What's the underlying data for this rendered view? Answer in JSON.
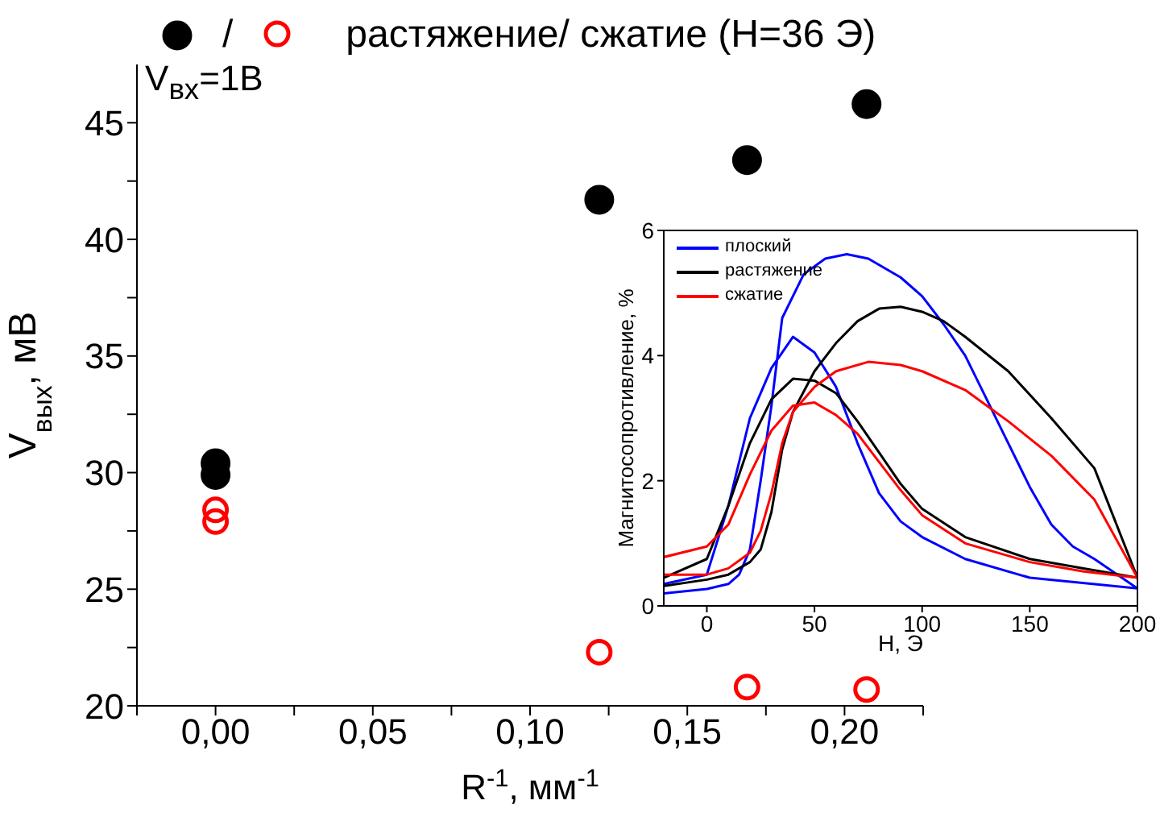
{
  "chart_data": [
    {
      "type": "scatter",
      "xlabel": "R$^{-1}$, мм$^{-1}$",
      "ylabel": "V$_{вых}$, мВ",
      "legend_title": "растяжение/ сжатие (H=36 Э)",
      "annotations": [
        "/",
        "V$_{вх}$=1В"
      ],
      "legend": "top",
      "marker": "circle",
      "xlim": [
        -0.025,
        0.225
      ],
      "ylim": [
        20,
        47.5
      ],
      "xticks": [
        {
          "value": -0.025,
          "label": null
        },
        {
          "value": 0,
          "label": "0,00"
        },
        {
          "value": 0.025,
          "label": null
        },
        {
          "value": 0.05,
          "label": "0,05"
        },
        {
          "value": 0.075,
          "label": null
        },
        {
          "value": 0.1,
          "label": "0,10"
        },
        {
          "value": 0.125,
          "label": null
        },
        {
          "value": 0.15,
          "label": "0,15"
        },
        {
          "value": 0.175,
          "label": null
        },
        {
          "value": 0.2,
          "label": "0,20"
        },
        {
          "value": 0.225,
          "label": null
        }
      ],
      "yticks": [
        20,
        {
          "value": 22.5,
          "label": null
        },
        25,
        {
          "value": 27.5,
          "label": null
        },
        30,
        {
          "value": 32.5,
          "label": null
        },
        35,
        {
          "value": 37.5,
          "label": null
        },
        40,
        {
          "value": 42.5,
          "label": null
        },
        45
      ],
      "series": [
        {
          "color": "#000000",
          "x": [
            0,
            0,
            0.122,
            0.169,
            0.207
          ],
          "values": [
            30.4,
            29.9,
            41.7,
            43.4,
            45.8
          ]
        },
        {
          "color": "#ff0000",
          "x": [
            0,
            0,
            0.122,
            0.169,
            0.207
          ],
          "values": [
            28.4,
            27.9,
            22.3,
            20.8,
            20.7
          ]
        }
      ]
    },
    {
      "type": "line",
      "xlabel": "H, Э",
      "ylabel": "Магнитосопротивление, %",
      "legend": "top left",
      "xlim": [
        -20,
        200
      ],
      "ylim": [
        0,
        6
      ],
      "xticks": [
        0,
        50,
        100,
        150,
        200
      ],
      "yticks": [
        0,
        2,
        4,
        6
      ],
      "series": [
        {
          "name": "плоский",
          "color": "#0000ff",
          "x": [
            -20,
            0,
            10,
            20,
            30,
            40,
            50,
            60,
            70,
            80,
            90,
            100,
            120,
            150,
            200,
            180,
            170,
            160,
            150,
            140,
            130,
            120,
            110,
            100,
            90,
            75,
            65,
            55,
            45,
            35,
            30,
            25,
            20,
            15,
            10,
            0,
            -20
          ],
          "values": [
            0.35,
            0.5,
            1.6,
            3.0,
            3.8,
            4.3,
            4.05,
            3.5,
            2.6,
            1.8,
            1.35,
            1.1,
            0.75,
            0.45,
            0.28,
            0.75,
            0.95,
            1.3,
            1.9,
            2.6,
            3.3,
            4.0,
            4.5,
            4.95,
            5.25,
            5.55,
            5.62,
            5.55,
            5.3,
            4.6,
            3.2,
            2.0,
            0.9,
            0.5,
            0.35,
            0.27,
            0.2
          ]
        },
        {
          "name": "растяжение",
          "color": "#000000",
          "x": [
            -20,
            0,
            10,
            20,
            30,
            40,
            50,
            60,
            70,
            80,
            90,
            100,
            120,
            150,
            175,
            200,
            180,
            160,
            140,
            120,
            110,
            100,
            90,
            80,
            70,
            60,
            50,
            40,
            35,
            30,
            25,
            20,
            10,
            0,
            -20
          ],
          "values": [
            0.45,
            0.75,
            1.6,
            2.6,
            3.3,
            3.63,
            3.6,
            3.4,
            2.95,
            2.45,
            1.95,
            1.55,
            1.1,
            0.75,
            0.6,
            0.45,
            2.2,
            3.0,
            3.75,
            4.3,
            4.55,
            4.7,
            4.78,
            4.75,
            4.55,
            4.2,
            3.75,
            3.1,
            2.5,
            1.5,
            0.9,
            0.7,
            0.5,
            0.42,
            0.32
          ]
        },
        {
          "name": "сжатие",
          "color": "#ff0000",
          "x": [
            -20,
            0,
            10,
            20,
            30,
            40,
            50,
            60,
            70,
            80,
            90,
            100,
            120,
            150,
            175,
            200,
            180,
            160,
            140,
            120,
            100,
            90,
            75,
            60,
            50,
            40,
            35,
            30,
            25,
            20,
            10,
            0,
            -20
          ],
          "values": [
            0.78,
            0.95,
            1.3,
            2.1,
            2.8,
            3.2,
            3.25,
            3.05,
            2.75,
            2.3,
            1.85,
            1.45,
            1.0,
            0.7,
            0.55,
            0.45,
            1.7,
            2.4,
            2.95,
            3.45,
            3.75,
            3.85,
            3.9,
            3.75,
            3.5,
            3.1,
            2.6,
            1.8,
            1.2,
            0.85,
            0.6,
            0.5,
            0.5
          ]
        }
      ]
    }
  ]
}
